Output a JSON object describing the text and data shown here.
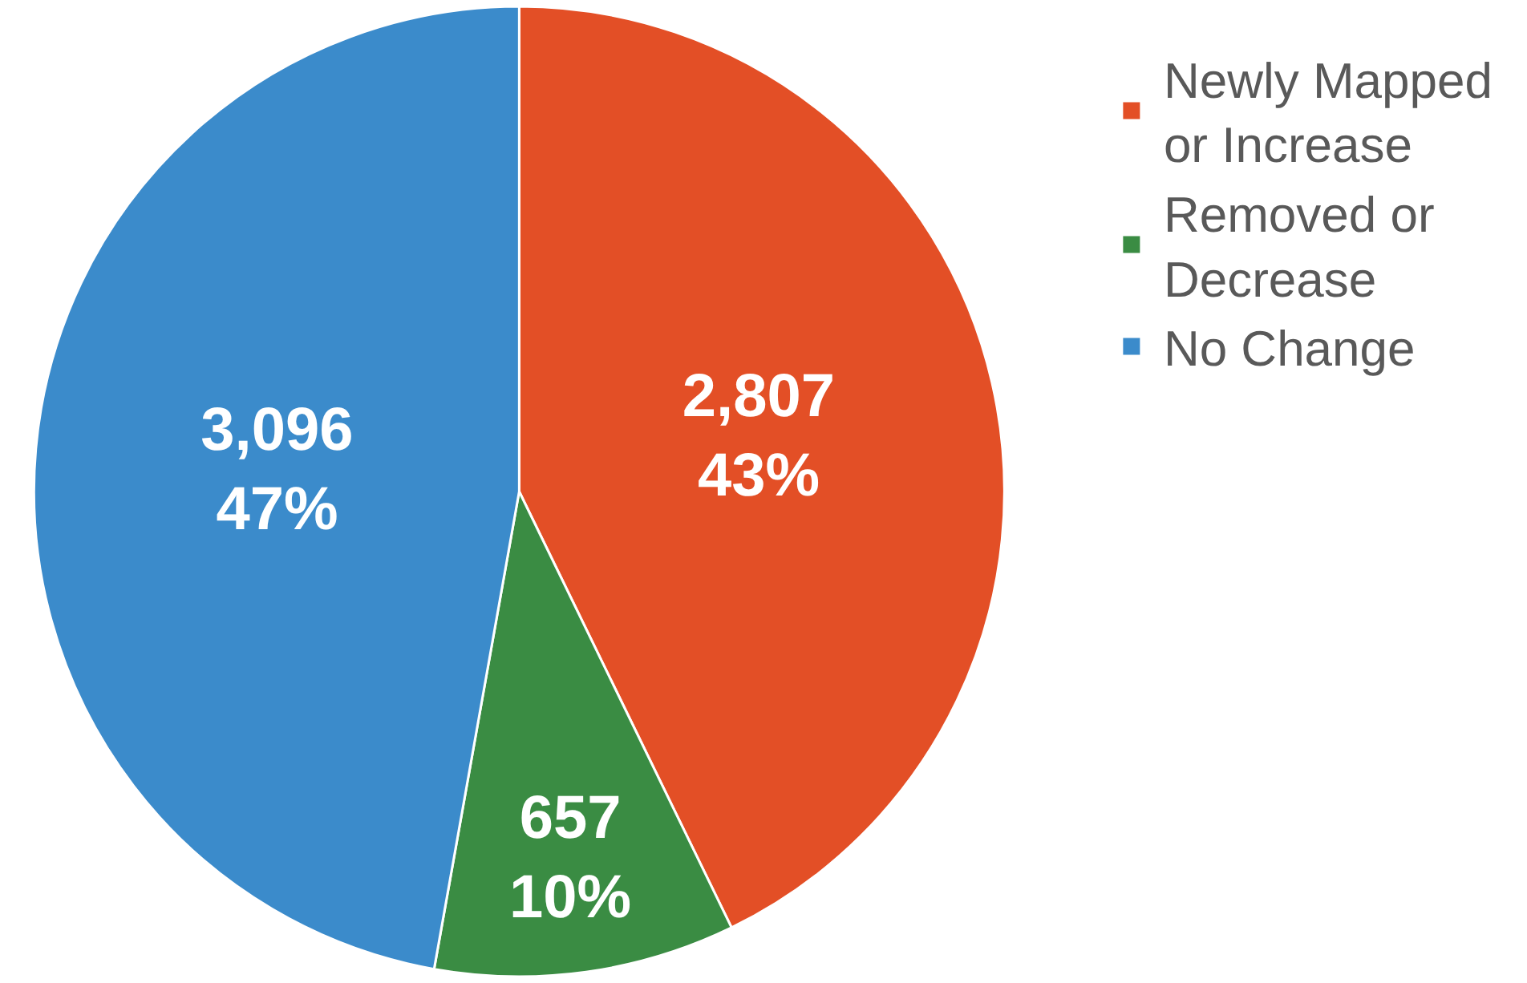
{
  "chart_data": {
    "type": "pie",
    "categories": [
      "Newly Mapped or Increase",
      "Removed or Decrease",
      "No Change"
    ],
    "values": [
      2807,
      657,
      3096
    ],
    "colors": [
      "#e34f26",
      "#3a8c43",
      "#3b8bcb"
    ],
    "value_labels": [
      "2,807\n43%",
      "657\n10%",
      "3,096\n47%"
    ],
    "legend": "top right"
  }
}
